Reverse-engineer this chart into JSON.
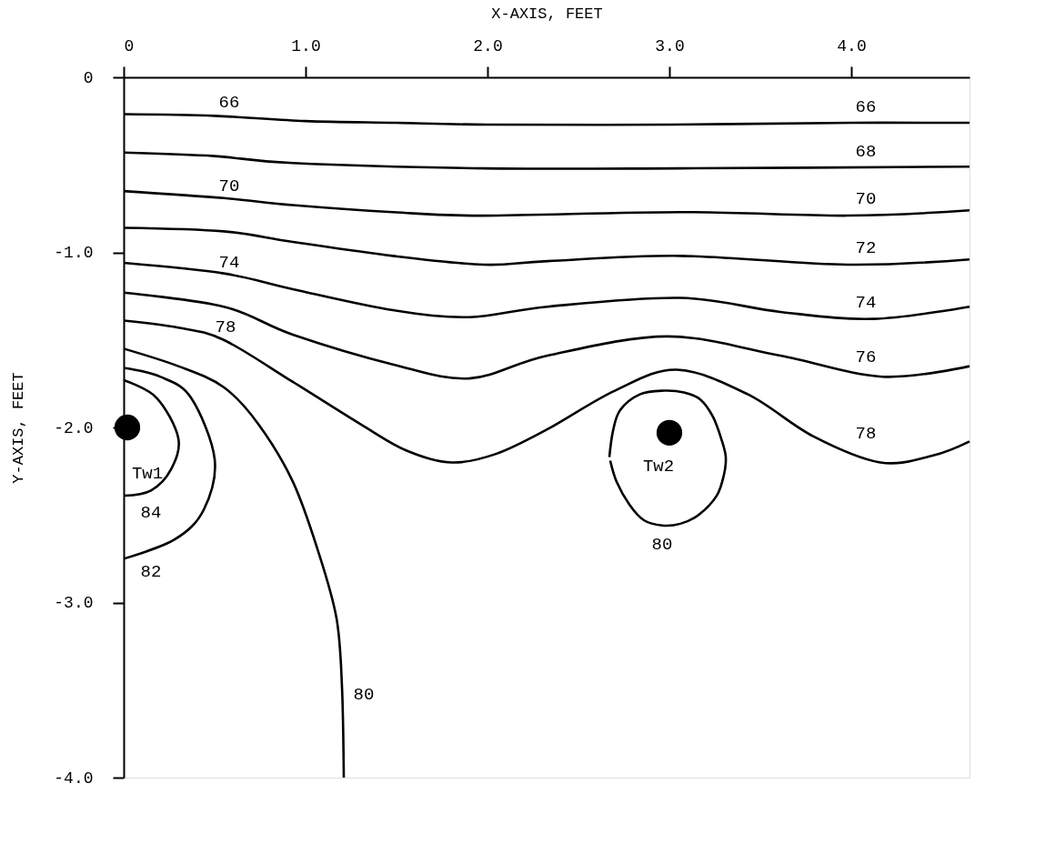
{
  "chart_data": {
    "type": "line",
    "xlabel": "X-AXIS, FEET",
    "ylabel": "Y-AXIS, FEET",
    "xlim": [
      0,
      4.65
    ],
    "xticks": [
      0,
      {
        "value": 1,
        "label": "1.0"
      },
      {
        "value": 2,
        "label": "2.0"
      },
      {
        "value": 3,
        "label": "3.0"
      },
      {
        "value": 4,
        "label": "4.0"
      }
    ],
    "ylim": [
      -4,
      0
    ],
    "yticks": [
      0,
      {
        "value": -1,
        "label": "-1.0"
      },
      {
        "value": -2,
        "label": "-2.0"
      },
      {
        "value": -3,
        "label": "-3.0"
      },
      {
        "value": -4,
        "label": "-4.0"
      }
    ],
    "grid": false,
    "legend": false,
    "line_style": "solid",
    "series": [
      {
        "name": "66",
        "color": "#000000",
        "x": [
          0,
          0.5,
          1,
          1.5,
          2,
          3,
          4,
          4.65
        ],
        "values": [
          -0.21,
          -0.22,
          -0.25,
          -0.26,
          -0.27,
          -0.27,
          -0.26,
          -0.26
        ]
      },
      {
        "name": "68",
        "color": "#000000",
        "x": [
          0,
          0.5,
          0.93,
          1.98,
          3.06,
          4.65
        ],
        "values": [
          -0.43,
          -0.45,
          -0.49,
          -0.52,
          -0.52,
          -0.51
        ]
      },
      {
        "name": "70",
        "color": "#000000",
        "x": [
          0,
          0.55,
          0.93,
          1.48,
          1.98,
          3.06,
          3.98,
          4.65
        ],
        "values": [
          -0.65,
          -0.69,
          -0.73,
          -0.77,
          -0.79,
          -0.77,
          -0.79,
          -0.76
        ]
      },
      {
        "name": "72",
        "color": "#000000",
        "x": [
          0,
          0.55,
          0.93,
          1.48,
          1.98,
          2.33,
          3.06,
          3.98,
          4.65
        ],
        "values": [
          -0.86,
          -0.88,
          -0.94,
          -1.02,
          -1.07,
          -1.05,
          -1.02,
          -1.07,
          -1.04
        ]
      },
      {
        "name": "74",
        "color": "#000000",
        "x": [
          0,
          0.55,
          0.93,
          1.48,
          1.9,
          2.33,
          3.06,
          3.61,
          4.12,
          4.65
        ],
        "values": [
          -1.06,
          -1.12,
          -1.21,
          -1.33,
          -1.37,
          -1.31,
          -1.26,
          -1.34,
          -1.38,
          -1.31
        ]
      },
      {
        "name": "76",
        "color": "#000000",
        "x": [
          0,
          0.55,
          0.93,
          1.48,
          1.9,
          2.33,
          2.99,
          3.61,
          4.17,
          4.65
        ],
        "values": [
          -1.23,
          -1.31,
          -1.47,
          -1.64,
          -1.72,
          -1.59,
          -1.48,
          -1.59,
          -1.71,
          -1.65
        ]
      },
      {
        "name": "78",
        "color": "#000000",
        "x": [
          0,
          0.3,
          0.55,
          0.93,
          1.3,
          1.55,
          1.8,
          2.05,
          2.33,
          2.7,
          3.04,
          3.43,
          3.79,
          4.16,
          4.45,
          4.65
        ],
        "values": [
          -1.39,
          -1.43,
          -1.5,
          -1.74,
          -1.98,
          -2.13,
          -2.2,
          -2.15,
          -2.01,
          -1.79,
          -1.67,
          -1.81,
          -2.05,
          -2.2,
          -2.16,
          -2.08
        ]
      },
      {
        "name": "80",
        "color": "#000000",
        "x": [
          0,
          0.3,
          0.55,
          0.74,
          0.93,
          1.07,
          1.17,
          1.2,
          1.21
        ],
        "values": [
          -1.55,
          -1.65,
          -1.77,
          -1.98,
          -2.31,
          -2.71,
          -3.09,
          -3.48,
          -4.0
        ]
      },
      {
        "name": "82",
        "color": "#000000",
        "x": [
          0,
          0.2,
          0.37,
          0.5,
          0.44,
          0.28,
          0
        ],
        "values": [
          -1.66,
          -1.71,
          -1.83,
          -2.18,
          -2.47,
          -2.64,
          -2.75
        ]
      },
      {
        "name": "84",
        "color": "#000000",
        "x": [
          0,
          0.18,
          0.3,
          0.26,
          0.15,
          0
        ],
        "values": [
          -1.73,
          -1.83,
          -2.06,
          -2.24,
          -2.36,
          -2.39
        ]
      },
      {
        "color": "#000000",
        "x": [
          2.67,
          2.69,
          2.73,
          2.84,
          2.97,
          3.08,
          3.17,
          3.24,
          3.29,
          3.31,
          3.3,
          3.26,
          3.16,
          3.06,
          2.96,
          2.86,
          2.78,
          2.71,
          2.675
        ],
        "values": [
          -2.17,
          -2.02,
          -1.9,
          -1.81,
          -1.79,
          -1.8,
          -1.84,
          -1.94,
          -2.08,
          -2.17,
          -2.27,
          -2.39,
          -2.5,
          -2.55,
          -2.56,
          -2.53,
          -2.44,
          -2.31,
          -2.19
        ]
      },
      {
        "type": "scatter",
        "marker": "circle",
        "color": "#000000",
        "x": [
          0.02,
          3.0
        ],
        "values": [
          -2.0,
          -2.03
        ]
      }
    ],
    "annotations": [
      "80",
      "Tw1",
      "Tw2"
    ]
  }
}
